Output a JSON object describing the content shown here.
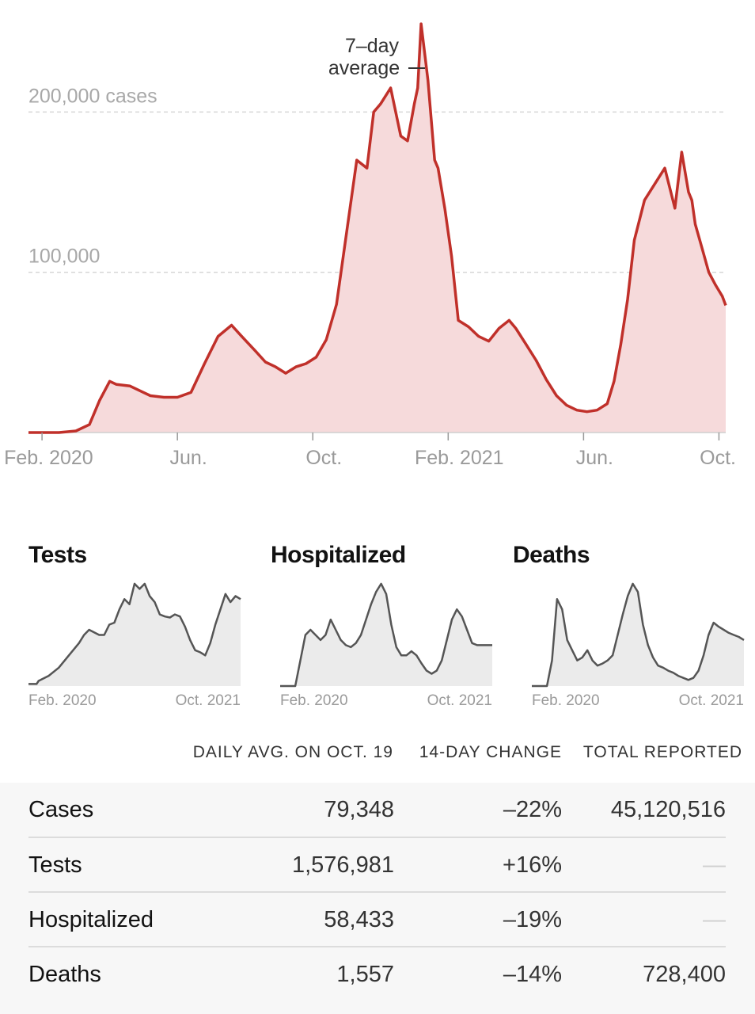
{
  "chart_data": [
    {
      "type": "area",
      "title": "Cases",
      "annotation": "7–day average",
      "y_tick_labels": [
        "200,000 cases",
        "100,000"
      ],
      "y_ticks": [
        200000,
        100000
      ],
      "ylim": [
        0,
        260000
      ],
      "x_tick_labels": [
        "Feb. 2020",
        "Jun.",
        "Oct.",
        "Feb. 2021",
        "Jun.",
        "Oct."
      ],
      "x_ticks": [
        1.0,
        5.0,
        9.0,
        13.0,
        17.0,
        21.0
      ],
      "xlim": [
        0.6,
        21.2
      ],
      "grid": true,
      "color": "#c0302a",
      "fill": "#f6dadb",
      "series": [
        {
          "name": "Cases",
          "x": [
            0.6,
            1.5,
            2.0,
            2.4,
            2.7,
            3.0,
            3.2,
            3.6,
            4.0,
            4.2,
            4.6,
            5.0,
            5.4,
            5.8,
            6.2,
            6.6,
            6.9,
            7.3,
            7.6,
            7.9,
            8.2,
            8.5,
            8.8,
            9.1,
            9.4,
            9.7,
            10.0,
            10.3,
            10.6,
            10.8,
            11.0,
            11.3,
            11.6,
            11.8,
            12.0,
            12.1,
            12.2,
            12.4,
            12.6,
            12.7,
            12.9,
            13.1,
            13.3,
            13.6,
            13.9,
            14.2,
            14.5,
            14.8,
            15.0,
            15.3,
            15.6,
            15.9,
            16.2,
            16.5,
            16.8,
            17.1,
            17.4,
            17.7,
            17.9,
            18.1,
            18.3,
            18.5,
            18.8,
            19.1,
            19.4,
            19.7,
            19.9,
            20.1,
            20.2,
            20.3,
            20.5,
            20.7,
            20.9,
            21.1,
            21.2
          ],
          "y": [
            0,
            0,
            1000,
            5000,
            20000,
            32000,
            30000,
            29000,
            25000,
            23000,
            22000,
            22000,
            25000,
            43000,
            60000,
            67000,
            60000,
            51000,
            44000,
            41000,
            37000,
            41000,
            43000,
            47000,
            58000,
            80000,
            125000,
            170000,
            165000,
            200000,
            205000,
            215000,
            185000,
            182000,
            205000,
            215000,
            255000,
            220000,
            170000,
            165000,
            140000,
            110000,
            70000,
            66000,
            60000,
            57000,
            65000,
            70000,
            65000,
            55000,
            45000,
            33000,
            23000,
            17000,
            14000,
            13000,
            14000,
            18000,
            32000,
            55000,
            83000,
            120000,
            145000,
            155000,
            165000,
            140000,
            175000,
            150000,
            145000,
            130000,
            115000,
            100000,
            92000,
            85000,
            79348
          ]
        }
      ]
    },
    {
      "type": "area",
      "title": "Tests",
      "x_tick_labels": [
        "Feb. 2020",
        "Oct. 2021"
      ],
      "xlim": [
        0,
        21
      ],
      "ylim": [
        0,
        1.1
      ],
      "series": [
        {
          "name": "Tests",
          "x": [
            0,
            0.8,
            1,
            2,
            3,
            4,
            5,
            5.5,
            6,
            7,
            7.5,
            8,
            8.5,
            9,
            9.5,
            10,
            10.5,
            11,
            11.5,
            12,
            12.5,
            13,
            13.5,
            14,
            14.5,
            15,
            15.5,
            16,
            16.5,
            17,
            17.5,
            18,
            18.5,
            19,
            19.5,
            20,
            20.5,
            21
          ],
          "y": [
            0.02,
            0.02,
            0.05,
            0.1,
            0.18,
            0.3,
            0.42,
            0.5,
            0.55,
            0.5,
            0.5,
            0.6,
            0.62,
            0.75,
            0.85,
            0.8,
            1.0,
            0.95,
            1.0,
            0.88,
            0.82,
            0.7,
            0.68,
            0.67,
            0.7,
            0.68,
            0.58,
            0.45,
            0.35,
            0.33,
            0.3,
            0.42,
            0.6,
            0.75,
            0.9,
            0.82,
            0.88,
            0.85
          ]
        }
      ]
    },
    {
      "type": "area",
      "title": "Hospitalized",
      "x_tick_labels": [
        "Feb. 2020",
        "Oct. 2021"
      ],
      "xlim": [
        0,
        21
      ],
      "ylim": [
        0,
        1.1
      ],
      "series": [
        {
          "name": "Hospitalized",
          "x": [
            0,
            1.5,
            2,
            2.5,
            3,
            3.5,
            4,
            4.5,
            5,
            5.5,
            6,
            6.5,
            7,
            7.5,
            8,
            8.5,
            9,
            9.5,
            10,
            10.5,
            11,
            11.5,
            12,
            12.5,
            13,
            13.5,
            14,
            14.5,
            15,
            15.5,
            16,
            16.5,
            17,
            17.5,
            18,
            18.5,
            19,
            19.5,
            20,
            20.5,
            21
          ],
          "y": [
            0,
            0,
            0.25,
            0.5,
            0.55,
            0.5,
            0.45,
            0.5,
            0.65,
            0.55,
            0.45,
            0.4,
            0.38,
            0.42,
            0.5,
            0.65,
            0.8,
            0.92,
            1.0,
            0.9,
            0.6,
            0.38,
            0.3,
            0.3,
            0.34,
            0.3,
            0.22,
            0.15,
            0.12,
            0.15,
            0.25,
            0.45,
            0.65,
            0.75,
            0.68,
            0.55,
            0.42,
            0.4,
            0.4,
            0.4,
            0.4
          ]
        }
      ]
    },
    {
      "type": "area",
      "title": "Deaths",
      "x_tick_labels": [
        "Feb. 2020",
        "Oct. 2021"
      ],
      "xlim": [
        0,
        21
      ],
      "ylim": [
        0,
        1.1
      ],
      "series": [
        {
          "name": "Deaths",
          "x": [
            0,
            1.5,
            2,
            2.5,
            3,
            3.5,
            4,
            4.5,
            5,
            5.5,
            6,
            6.5,
            7,
            7.5,
            8,
            8.5,
            9,
            9.5,
            10,
            10.5,
            11,
            11.5,
            12,
            12.5,
            13,
            13.5,
            14,
            14.5,
            15,
            15.5,
            16,
            16.5,
            17,
            17.5,
            18,
            18.5,
            19,
            19.5,
            20,
            20.5,
            21
          ],
          "y": [
            0,
            0,
            0.25,
            0.85,
            0.75,
            0.45,
            0.35,
            0.25,
            0.28,
            0.35,
            0.25,
            0.2,
            0.22,
            0.25,
            0.3,
            0.5,
            0.7,
            0.88,
            1.0,
            0.92,
            0.6,
            0.4,
            0.28,
            0.2,
            0.18,
            0.15,
            0.13,
            0.1,
            0.08,
            0.06,
            0.08,
            0.15,
            0.3,
            0.5,
            0.62,
            0.58,
            0.55,
            0.52,
            0.5,
            0.48,
            0.45
          ]
        }
      ]
    }
  ],
  "stats_table": {
    "headers": {
      "avg": "DAILY AVG. ON OCT. 19",
      "change": "14-DAY CHANGE",
      "total": "TOTAL REPORTED"
    },
    "rows": [
      {
        "name": "Cases",
        "avg": "79,348",
        "change": "–22%",
        "total": "45,120,516"
      },
      {
        "name": "Tests",
        "avg": "1,576,981",
        "change": "+16%",
        "total": "—"
      },
      {
        "name": "Hospitalized",
        "avg": "58,433",
        "change": "–19%",
        "total": "—"
      },
      {
        "name": "Deaths",
        "avg": "1,557",
        "change": "–14%",
        "total": "728,400"
      }
    ]
  }
}
